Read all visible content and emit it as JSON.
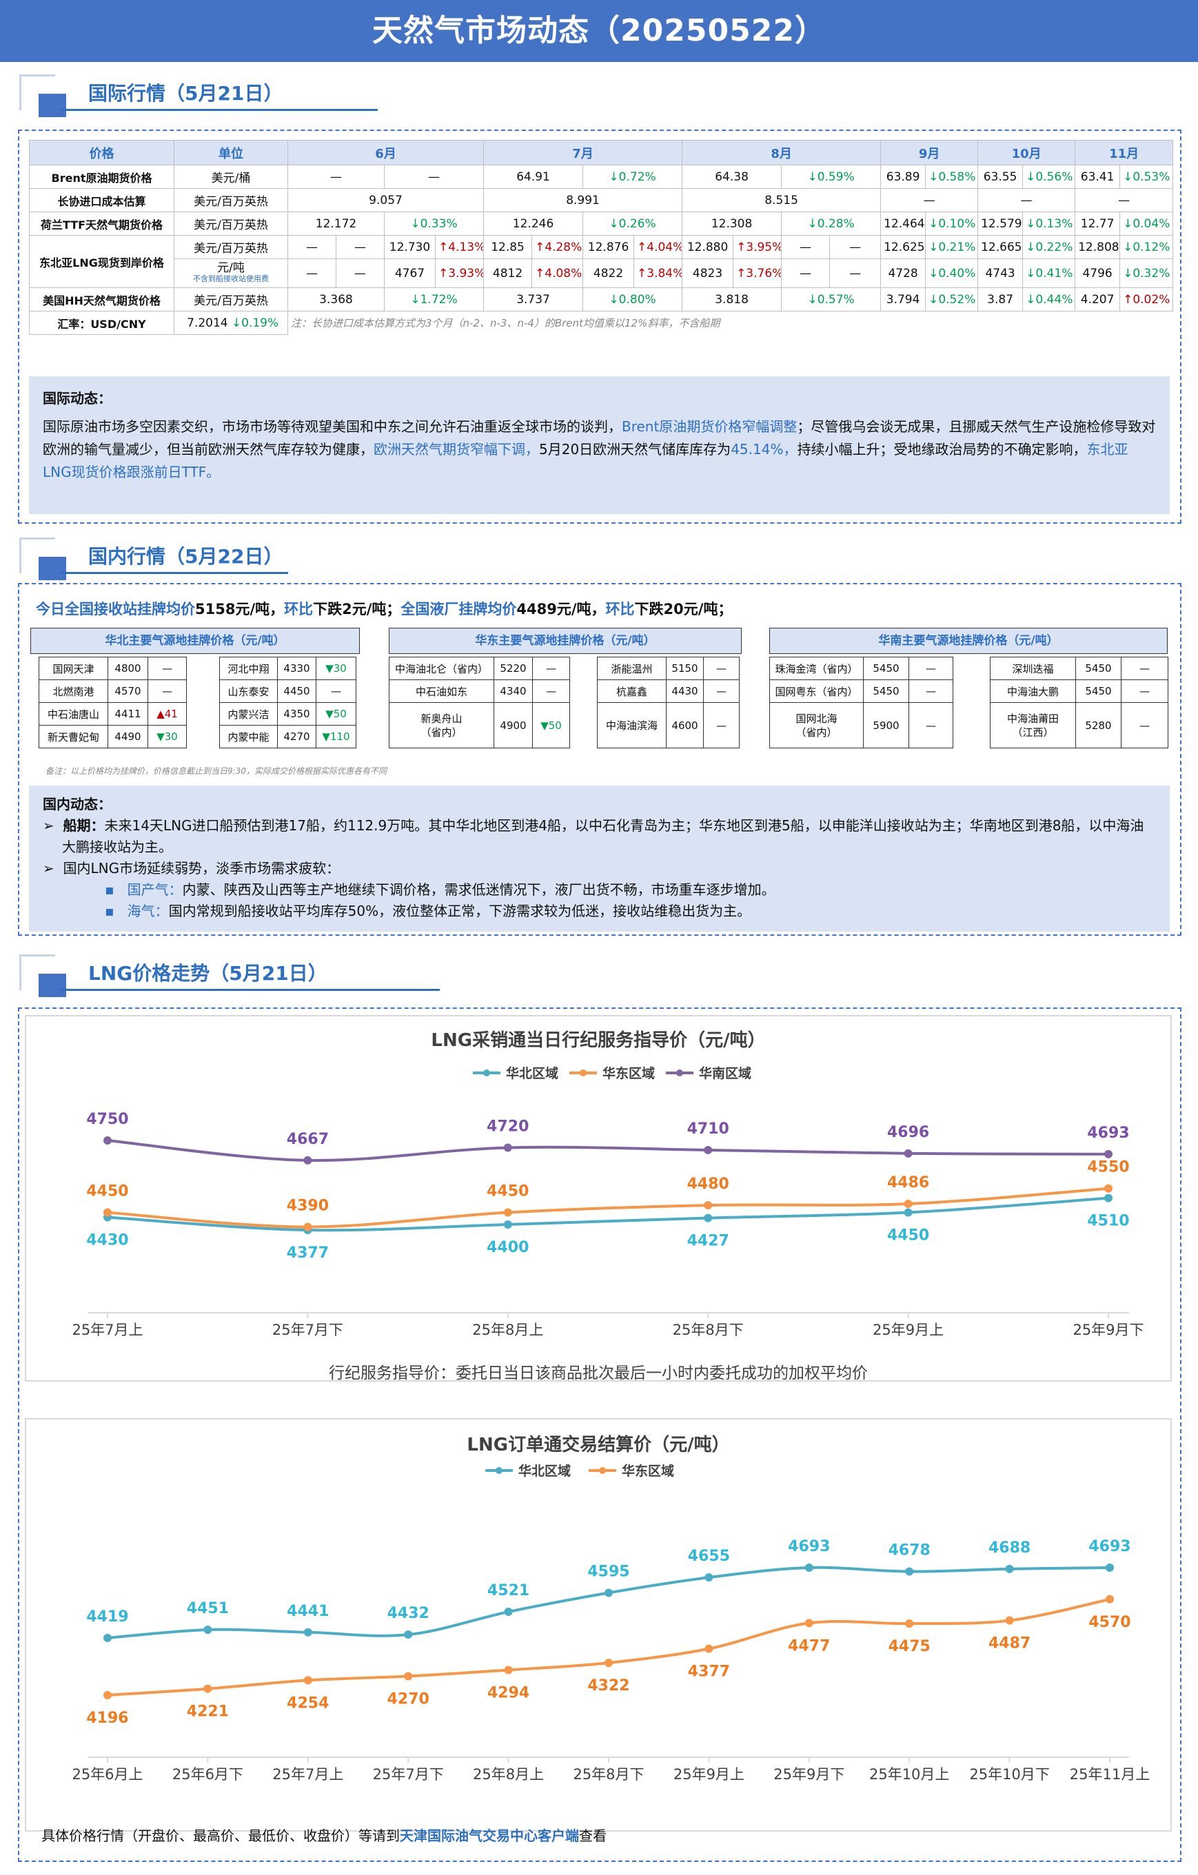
{
  "title": "天然气市场动态（20250522）",
  "sec1": {
    "title": "国际行情（5月21日）"
  },
  "intl": {
    "headers": [
      "价格",
      "单位",
      "6月",
      "7月",
      "8月",
      "9月",
      "10月",
      "11月"
    ],
    "brent": {
      "name": "Brent原油期货价格",
      "unit": "美元/桶",
      "m6a": "—",
      "m6b": "—",
      "m7": "64.91",
      "m7c": "↓0.72%",
      "m8": "64.38",
      "m8c": "↓0.59%",
      "m9": "63.89",
      "m9c": "↓0.58%",
      "m10": "63.55",
      "m10c": "↓0.56%",
      "m11": "63.41",
      "m11c": "↓0.53%"
    },
    "ltc": {
      "name": "长协进口成本估算",
      "unit": "美元/百万英热",
      "m6": "9.057",
      "m7": "8.991",
      "m8": "8.515",
      "m9": "—",
      "m10": "—",
      "m11": "—"
    },
    "ttf": {
      "name": "荷兰TTF天然气期货价格",
      "unit": "美元/百万英热",
      "m6": "12.172",
      "m6c": "↓0.33%",
      "m7": "12.246",
      "m7c": "↓0.26%",
      "m8": "12.308",
      "m8c": "↓0.28%",
      "m9": "12.464",
      "m9c": "↓0.10%",
      "m10": "12.579",
      "m10c": "↓0.13%",
      "m11": "12.77",
      "m11c": "↓0.04%"
    },
    "nea": {
      "name": "东北亚LNG现货到岸价格",
      "unit1": "美元/百万英热",
      "unit2": "元/吨",
      "unit2note": "不含到船接收站使用费",
      "r1": [
        "—",
        "—",
        "12.730",
        "↑4.13%",
        "12.85",
        "↑4.28%",
        "12.876",
        "↑4.04%",
        "12.880",
        "↑3.95%",
        "—",
        "—",
        "12.625",
        "↓0.21%",
        "12.665",
        "↓0.22%",
        "12.808",
        "↓0.12%"
      ],
      "r2": [
        "—",
        "—",
        "4767",
        "↑3.93%",
        "4812",
        "↑4.08%",
        "4822",
        "↑3.84%",
        "4823",
        "↑3.76%",
        "—",
        "—",
        "4728",
        "↓0.40%",
        "4743",
        "↓0.41%",
        "4796",
        "↓0.32%"
      ]
    },
    "hh": {
      "name": "美国HH天然气期货价格",
      "unit": "美元/百万英热",
      "m6": "3.368",
      "m6c": "↓1.72%",
      "m7": "3.737",
      "m7c": "↓0.80%",
      "m8": "3.818",
      "m8c": "↓0.57%",
      "m9": "3.794",
      "m9c": "↓0.52%",
      "m10": "3.87",
      "m10c": "↓0.44%",
      "m11": "4.207",
      "m11c": "↑0.02%"
    },
    "fx": {
      "name": "汇率：USD/CNY",
      "value": "7.2014",
      "change": "↓0.19%",
      "note": "注：长协进口成本估算方式为3个月（n-2、n-3、n-4）的Brent均值乘以12%斜率，不含船期"
    }
  },
  "intl_news": {
    "title": "国际动态：",
    "p1": "国际原油市场多空因素交织，市场市场等待观望美国和中东之间允许石油重返全球市场的谈判，",
    "h1": "Brent原油期货价格窄幅调整",
    "p2": "；尽管俄乌会谈无成果，且挪威天然气生产设施检修导致对欧洲的输气量减少，但当前欧洲天然气库存较为健康，",
    "h2": "欧洲天然气期货窄幅下调，",
    "p3": "5月20日欧洲天然气储库库存为",
    "h3": "45.14%，",
    "p4": "持续小幅上升；受地缘政治局势的不确定影响，",
    "h4": "东北亚LNG现货价格跟涨前日TTF。"
  },
  "sec2": {
    "title": "国内行情（5月22日）"
  },
  "domestic": {
    "summary": [
      {
        "t": "今日全国接收站挂牌均价",
        "c": "blue"
      },
      {
        "t": "5158元/吨，",
        "c": ""
      },
      {
        "t": "环比",
        "c": "blue"
      },
      {
        "t": "下跌2元/吨；",
        "c": ""
      },
      {
        "t": "全国液厂挂牌均价",
        "c": "blue"
      },
      {
        "t": "4489元/吨，",
        "c": ""
      },
      {
        "t": "环比",
        "c": "blue"
      },
      {
        "t": "下跌20元/吨；",
        "c": ""
      }
    ],
    "north": {
      "title": "华北主要气源地挂牌价格（元/吨）",
      "left": [
        [
          "国网天津",
          "4800",
          "—"
        ],
        [
          "北燃南港",
          "4570",
          "—"
        ],
        [
          "中石油唐山",
          "4411",
          "▲41"
        ],
        [
          "新天曹妃甸",
          "4490",
          "▼30"
        ]
      ],
      "right": [
        [
          "河北中翔",
          "4330",
          "▼30"
        ],
        [
          "山东泰安",
          "4450",
          "—"
        ],
        [
          "内蒙兴洁",
          "4350",
          "▼50"
        ],
        [
          "内蒙中能",
          "4270",
          "▼110"
        ]
      ]
    },
    "east": {
      "title": "华东主要气源地挂牌价格（元/吨）",
      "left": [
        [
          "中海油北仑（省内）",
          "5220",
          "—"
        ],
        [
          "中石油如东",
          "4340",
          "—"
        ],
        [
          "新奥舟山\n（省内）",
          "4900",
          "▼50"
        ]
      ],
      "right": [
        [
          "浙能温州",
          "5150",
          "—"
        ],
        [
          "杭嘉鑫",
          "4430",
          "—"
        ],
        [
          "中海油滨海",
          "4600",
          "—"
        ]
      ]
    },
    "south": {
      "title": "华南主要气源地挂牌价格（元/吨）",
      "left": [
        [
          "珠海金湾（省内）",
          "5450",
          "—"
        ],
        [
          "国网粤东（省内）",
          "5450",
          "—"
        ],
        [
          "国网北海\n（省内）",
          "5900",
          "—"
        ]
      ],
      "right": [
        [
          "深圳迭福",
          "5450",
          "—"
        ],
        [
          "中海油大鹏",
          "5450",
          "—"
        ],
        [
          "中海油莆田\n（江西）",
          "5280",
          "—"
        ]
      ]
    },
    "note": "备注：以上价格均为挂牌价，价格信息截止到当日9:30，实际成交价格根据实际优惠各有不同"
  },
  "dom_news": {
    "title": "国内动态：",
    "b1_label": "船期：",
    "b1": "未来14天LNG进口船预估到港17船，约112.9万吨。其中华北地区到港4船，以中石化青岛为主；华东地区到港5船，以申能洋山接收站为主；华南地区到港8船，以中海油大鹏接收站为主。",
    "b2": "国内LNG市场延续弱势，淡季市场需求疲软：",
    "s1_label": "国产气：",
    "s1": "内蒙、陕西及山西等主产地继续下调价格，需求低迷情况下，液厂出货不畅，市场重车逐步增加。",
    "s2_label": "海气：",
    "s2": "国内常规到船接收站平均库存50%，液位整体正常，下游需求较为低迷，接收站维稳出货为主。"
  },
  "sec3": {
    "title": "LNG价格走势（5月21日）"
  },
  "chart_data": [
    {
      "type": "line",
      "title": "LNG采销通当日行纪服务指导价（元/吨）",
      "categories": [
        "25年7月上",
        "25年7月下",
        "25年8月上",
        "25年8月下",
        "25年9月上",
        "25年9月下"
      ],
      "series": [
        {
          "name": "华北区域",
          "color": "#4bacc6",
          "values": [
            4430,
            4377,
            4400,
            4427,
            4450,
            4510
          ]
        },
        {
          "name": "华东区域",
          "color": "#f79646",
          "values": [
            4450,
            4390,
            4450,
            4480,
            4486,
            4550
          ]
        },
        {
          "name": "华南区域",
          "color": "#8064a2",
          "values": [
            4750,
            4667,
            4720,
            4710,
            4696,
            4693
          ]
        }
      ],
      "footnote": "行纪服务指导价：委托日当日该商品批次最后一小时内委托成功的加权平均价"
    },
    {
      "type": "line",
      "title": "LNG订单通交易结算价（元/吨）",
      "categories": [
        "25年6月上",
        "25年6月下",
        "25年7月上",
        "25年7月下",
        "25年8月上",
        "25年8月下",
        "25年9月上",
        "25年9月下",
        "25年10月上",
        "25年10月下",
        "25年11月上"
      ],
      "series": [
        {
          "name": "华北区域",
          "color": "#4bacc6",
          "values": [
            4419,
            4451,
            4441,
            4432,
            4521,
            4595,
            4655,
            4693,
            4678,
            4688,
            4693
          ]
        },
        {
          "name": "华东区域",
          "color": "#f79646",
          "values": [
            4196,
            4221,
            4254,
            4270,
            4294,
            4322,
            4377,
            4477,
            4475,
            4487,
            4570
          ]
        }
      ]
    }
  ],
  "footer": {
    "pre": "具体价格行情（开盘价、最高价、最低价、收盘价）等请到",
    "link": "天津国际油气交易中心客户端",
    "post": "查看"
  }
}
